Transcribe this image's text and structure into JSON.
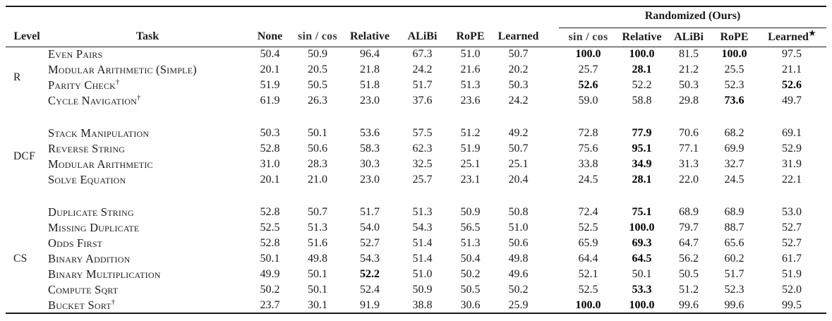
{
  "colors": {
    "background": "#ffffff",
    "text": "#1b1b1b",
    "rule": "#1a1a1a"
  },
  "table": {
    "level_header": "Level",
    "task_header": "Task",
    "group_header": "Randomized (Ours)",
    "star": "★",
    "base_columns": [
      "None",
      "sin / cos",
      "Relative",
      "ALiBi",
      "RoPE",
      "Learned"
    ],
    "randomized_columns": [
      "sin / cos",
      "Relative",
      "ALiBi",
      "RoPE",
      "Learned"
    ],
    "groups": [
      {
        "level": "R",
        "rows": [
          {
            "task": "Even Pairs",
            "sup": "",
            "base": [
              "50.4",
              "50.9",
              "96.4",
              "67.3",
              "51.0",
              "50.7"
            ],
            "base_bold": [
              0,
              0,
              0,
              0,
              0,
              0
            ],
            "rand": [
              "100.0",
              "100.0",
              "81.5",
              "100.0",
              "97.5"
            ],
            "rand_bold": [
              1,
              1,
              0,
              1,
              0
            ]
          },
          {
            "task": "Modular Arithmetic (Simple)",
            "sup": "",
            "base": [
              "20.1",
              "20.5",
              "21.8",
              "24.2",
              "21.6",
              "20.2"
            ],
            "base_bold": [
              0,
              0,
              0,
              0,
              0,
              0
            ],
            "rand": [
              "25.7",
              "28.1",
              "21.2",
              "25.5",
              "21.1"
            ],
            "rand_bold": [
              0,
              1,
              0,
              0,
              0
            ]
          },
          {
            "task": "Parity Check",
            "sup": "†",
            "base": [
              "51.9",
              "50.5",
              "51.8",
              "51.7",
              "51.3",
              "50.3"
            ],
            "base_bold": [
              0,
              0,
              0,
              0,
              0,
              0
            ],
            "rand": [
              "52.6",
              "52.2",
              "50.3",
              "52.3",
              "52.6"
            ],
            "rand_bold": [
              1,
              0,
              0,
              0,
              1
            ]
          },
          {
            "task": "Cycle Navigation",
            "sup": "†",
            "base": [
              "61.9",
              "26.3",
              "23.0",
              "37.6",
              "23.6",
              "24.2"
            ],
            "base_bold": [
              0,
              0,
              0,
              0,
              0,
              0
            ],
            "rand": [
              "59.0",
              "58.8",
              "29.8",
              "73.6",
              "49.7"
            ],
            "rand_bold": [
              0,
              0,
              0,
              1,
              0
            ]
          }
        ]
      },
      {
        "level": "DCF",
        "rows": [
          {
            "task": "Stack Manipulation",
            "sup": "",
            "base": [
              "50.3",
              "50.1",
              "53.6",
              "57.5",
              "51.2",
              "49.2"
            ],
            "base_bold": [
              0,
              0,
              0,
              0,
              0,
              0
            ],
            "rand": [
              "72.8",
              "77.9",
              "70.6",
              "68.2",
              "69.1"
            ],
            "rand_bold": [
              0,
              1,
              0,
              0,
              0
            ]
          },
          {
            "task": "Reverse String",
            "sup": "",
            "base": [
              "52.8",
              "50.6",
              "58.3",
              "62.3",
              "51.9",
              "50.7"
            ],
            "base_bold": [
              0,
              0,
              0,
              0,
              0,
              0
            ],
            "rand": [
              "75.6",
              "95.1",
              "77.1",
              "69.9",
              "52.9"
            ],
            "rand_bold": [
              0,
              1,
              0,
              0,
              0
            ]
          },
          {
            "task": "Modular Arithmetic",
            "sup": "",
            "base": [
              "31.0",
              "28.3",
              "30.3",
              "32.5",
              "25.1",
              "25.1"
            ],
            "base_bold": [
              0,
              0,
              0,
              0,
              0,
              0
            ],
            "rand": [
              "33.8",
              "34.9",
              "31.3",
              "32.7",
              "31.9"
            ],
            "rand_bold": [
              0,
              1,
              0,
              0,
              0
            ]
          },
          {
            "task": "Solve Equation",
            "sup": "",
            "base": [
              "20.1",
              "21.0",
              "23.0",
              "25.7",
              "23.1",
              "20.4"
            ],
            "base_bold": [
              0,
              0,
              0,
              0,
              0,
              0
            ],
            "rand": [
              "24.5",
              "28.1",
              "22.0",
              "24.5",
              "22.1"
            ],
            "rand_bold": [
              0,
              1,
              0,
              0,
              0
            ]
          }
        ]
      },
      {
        "level": "CS",
        "rows": [
          {
            "task": "Duplicate String",
            "sup": "",
            "base": [
              "52.8",
              "50.7",
              "51.7",
              "51.3",
              "50.9",
              "50.8"
            ],
            "base_bold": [
              0,
              0,
              0,
              0,
              0,
              0
            ],
            "rand": [
              "72.4",
              "75.1",
              "68.9",
              "68.9",
              "53.0"
            ],
            "rand_bold": [
              0,
              1,
              0,
              0,
              0
            ]
          },
          {
            "task": "Missing Duplicate",
            "sup": "",
            "base": [
              "52.5",
              "51.3",
              "54.0",
              "54.3",
              "56.5",
              "51.0"
            ],
            "base_bold": [
              0,
              0,
              0,
              0,
              0,
              0
            ],
            "rand": [
              "52.5",
              "100.0",
              "79.7",
              "88.7",
              "52.7"
            ],
            "rand_bold": [
              0,
              1,
              0,
              0,
              0
            ]
          },
          {
            "task": "Odds First",
            "sup": "",
            "base": [
              "52.8",
              "51.6",
              "52.7",
              "51.4",
              "51.3",
              "50.6"
            ],
            "base_bold": [
              0,
              0,
              0,
              0,
              0,
              0
            ],
            "rand": [
              "65.9",
              "69.3",
              "64.7",
              "65.6",
              "52.7"
            ],
            "rand_bold": [
              0,
              1,
              0,
              0,
              0
            ]
          },
          {
            "task": "Binary Addition",
            "sup": "",
            "base": [
              "50.1",
              "49.8",
              "54.3",
              "51.4",
              "50.4",
              "49.8"
            ],
            "base_bold": [
              0,
              0,
              0,
              0,
              0,
              0
            ],
            "rand": [
              "64.4",
              "64.5",
              "56.2",
              "60.2",
              "61.7"
            ],
            "rand_bold": [
              0,
              1,
              0,
              0,
              0
            ]
          },
          {
            "task": "Binary Multiplication",
            "sup": "",
            "base": [
              "49.9",
              "50.1",
              "52.2",
              "51.0",
              "50.2",
              "49.6"
            ],
            "base_bold": [
              0,
              0,
              1,
              0,
              0,
              0
            ],
            "rand": [
              "52.1",
              "50.1",
              "50.5",
              "51.7",
              "51.9"
            ],
            "rand_bold": [
              0,
              0,
              0,
              0,
              0
            ]
          },
          {
            "task": "Compute Sqrt",
            "sup": "",
            "base": [
              "50.2",
              "50.1",
              "52.4",
              "50.9",
              "50.5",
              "50.2"
            ],
            "base_bold": [
              0,
              0,
              0,
              0,
              0,
              0
            ],
            "rand": [
              "52.5",
              "53.3",
              "51.2",
              "52.3",
              "52.0"
            ],
            "rand_bold": [
              0,
              1,
              0,
              0,
              0
            ]
          },
          {
            "task": "Bucket Sort",
            "sup": "†",
            "base": [
              "23.7",
              "30.1",
              "91.9",
              "38.8",
              "30.6",
              "25.9"
            ],
            "base_bold": [
              0,
              0,
              0,
              0,
              0,
              0
            ],
            "rand": [
              "100.0",
              "100.0",
              "99.6",
              "99.6",
              "99.5"
            ],
            "rand_bold": [
              1,
              1,
              0,
              0,
              0
            ]
          }
        ]
      }
    ]
  }
}
